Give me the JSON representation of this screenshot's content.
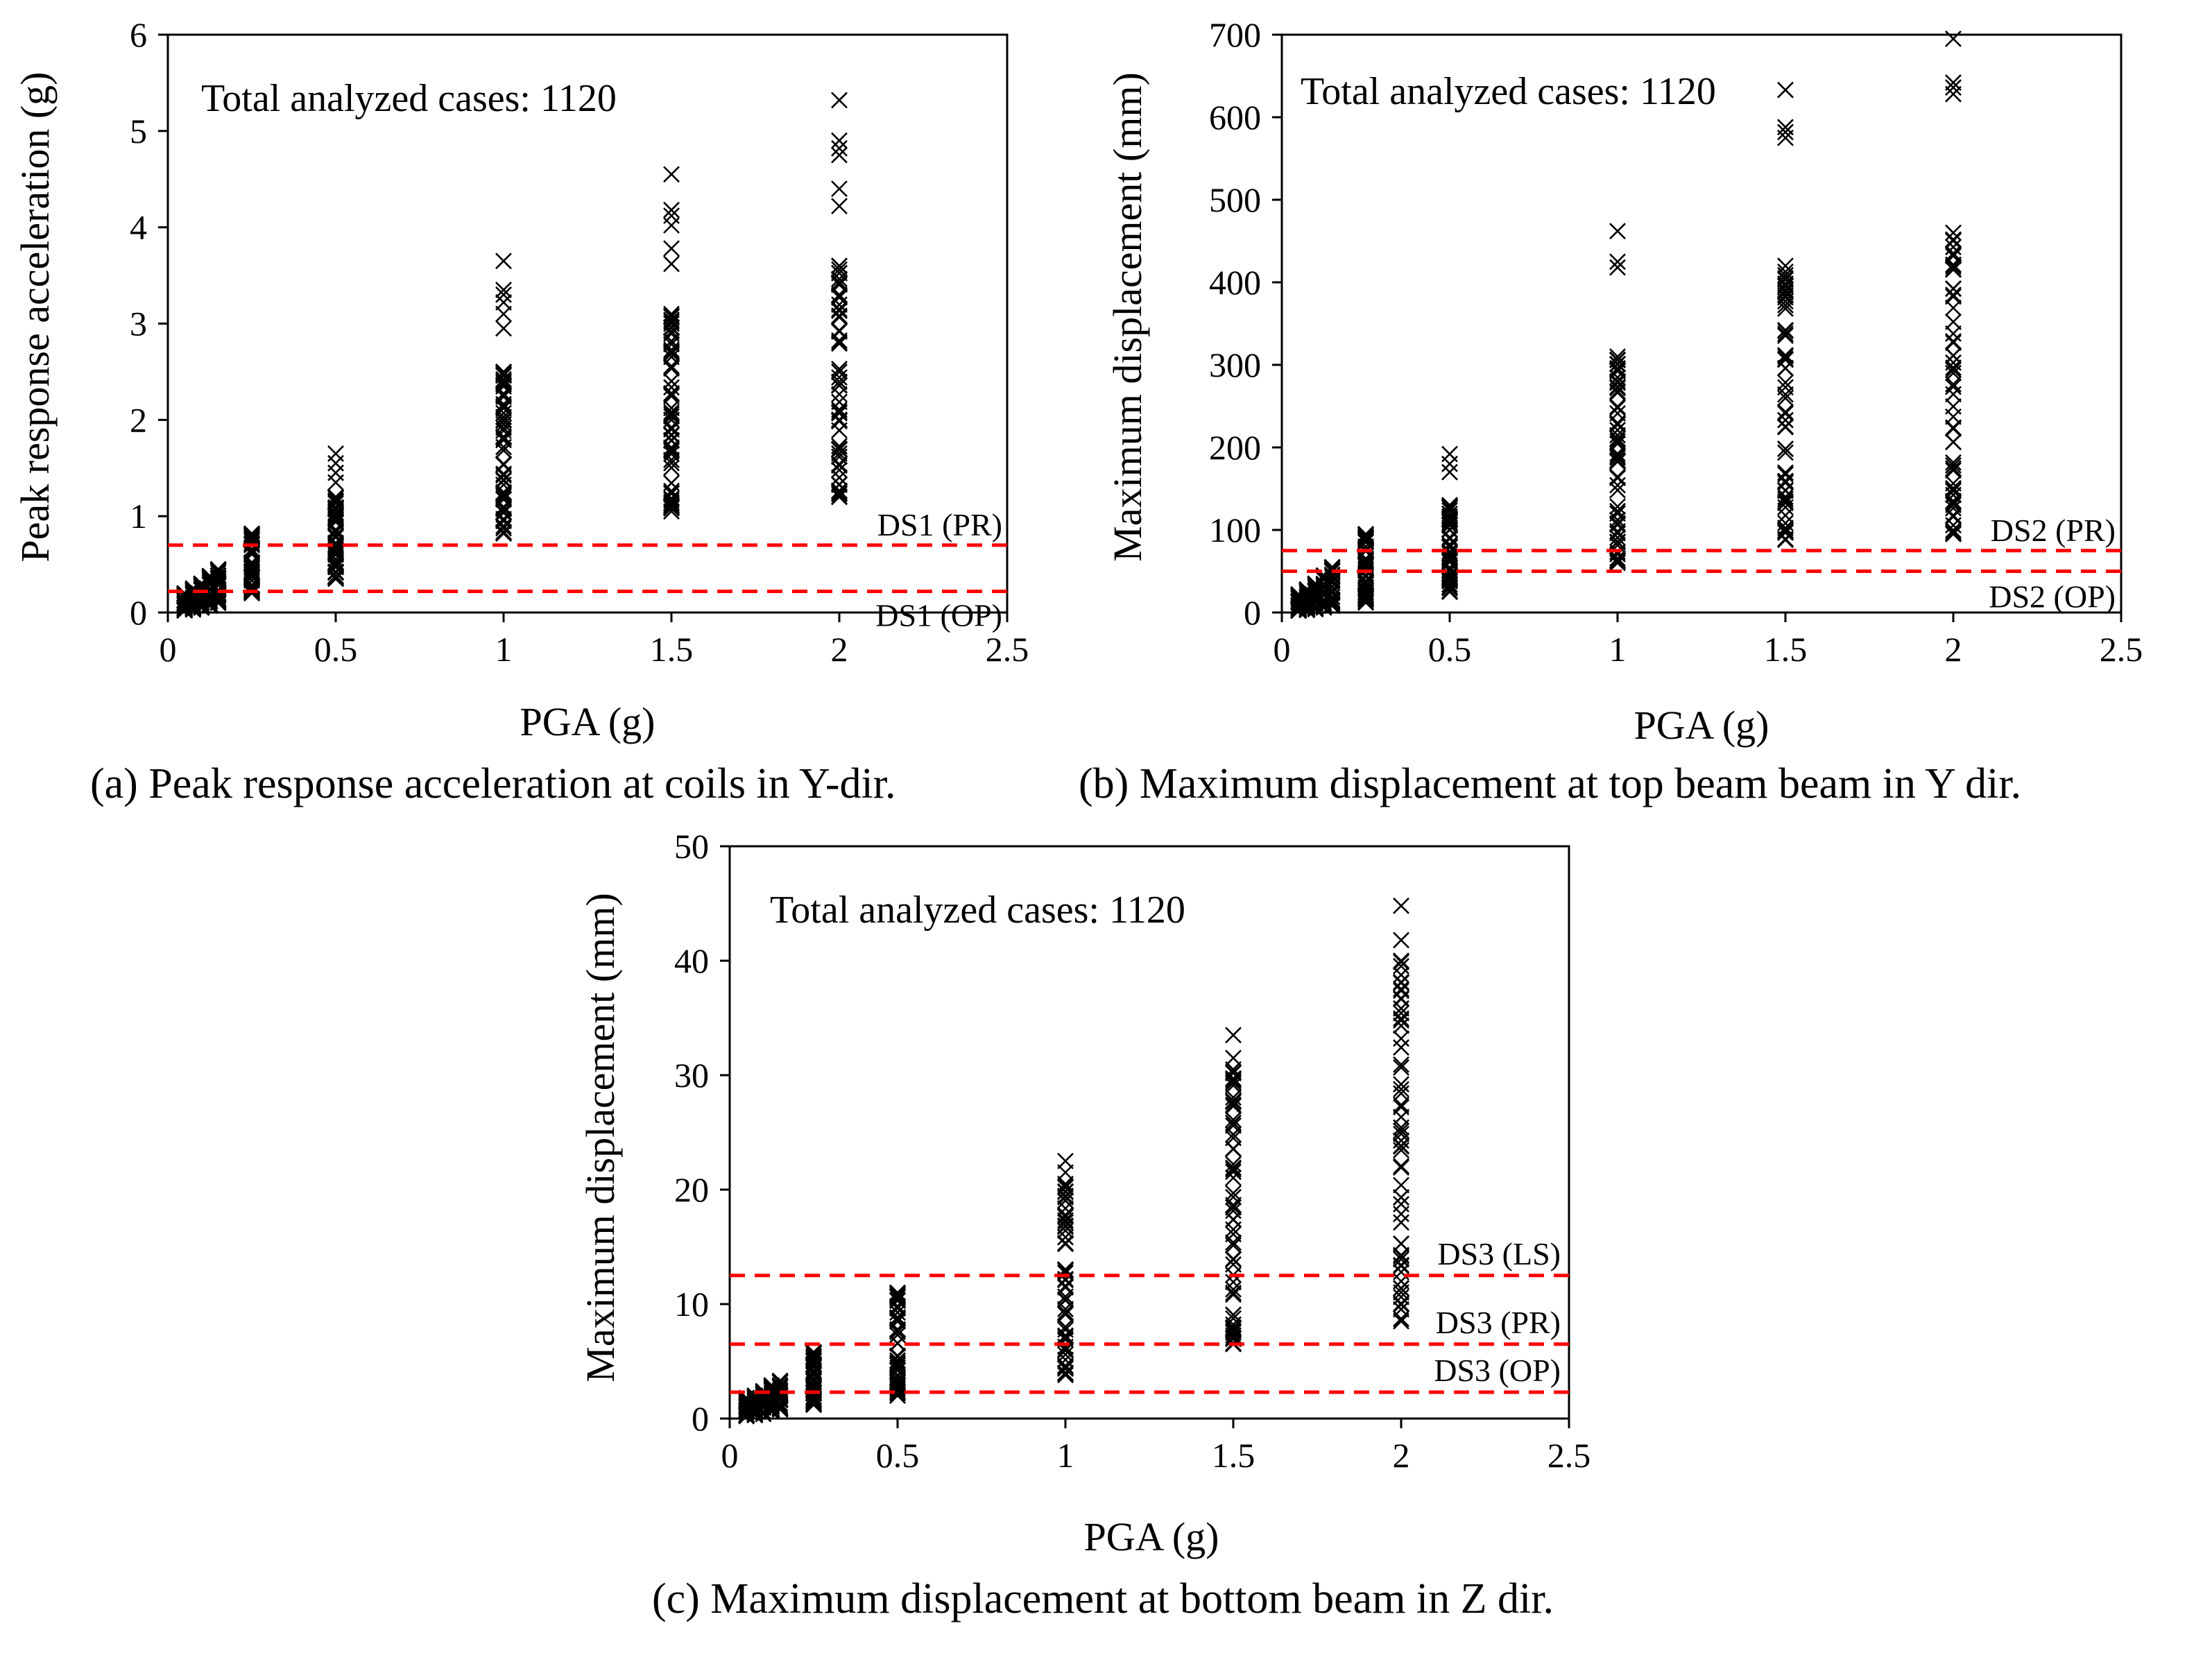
{
  "chart_data": [
    {
      "id": "a",
      "type": "scatter",
      "caption": "(a) Peak response acceleration at coils in Y-dir.",
      "annotation": "Total analyzed cases: 1120",
      "xlabel": "PGA (g)",
      "ylabel": "Peak response acceleration (g)",
      "xlim": [
        0,
        2.5
      ],
      "ylim": [
        0,
        6
      ],
      "xticks": [
        0,
        0.5,
        1,
        1.5,
        2,
        2.5
      ],
      "xtick_labels": [
        "0",
        "0.5",
        "1",
        "1.5",
        "2",
        "2.5"
      ],
      "yticks": [
        0,
        1,
        2,
        3,
        4,
        5,
        6
      ],
      "ytick_labels": [
        "0",
        "1",
        "2",
        "3",
        "4",
        "5",
        "6"
      ],
      "marker": "x",
      "marker_color": "#000000",
      "thresholds": [
        {
          "label": "DS1 (PR)",
          "value": 0.7,
          "color": "#ff0000"
        },
        {
          "label": "DS1 (OP)",
          "value": 0.22,
          "color": "#ff0000"
        }
      ],
      "groups": [
        {
          "pga": 0.05,
          "min": 0.02,
          "max": 0.2
        },
        {
          "pga": 0.075,
          "min": 0.03,
          "max": 0.25
        },
        {
          "pga": 0.1,
          "min": 0.05,
          "max": 0.3
        },
        {
          "pga": 0.125,
          "min": 0.07,
          "max": 0.38
        },
        {
          "pga": 0.15,
          "min": 0.1,
          "max": 0.45
        },
        {
          "pga": 0.25,
          "min": 0.2,
          "max": 0.82
        },
        {
          "pga": 0.5,
          "min": 0.35,
          "max": 1.2
        },
        {
          "pga": 1.0,
          "min": 0.82,
          "max": 2.5
        },
        {
          "pga": 1.5,
          "min": 1.05,
          "max": 3.1
        },
        {
          "pga": 2.0,
          "min": 1.2,
          "max": 3.6
        }
      ],
      "outliers": [
        {
          "x": 0.5,
          "y": 1.35
        },
        {
          "x": 0.5,
          "y": 1.45
        },
        {
          "x": 0.5,
          "y": 1.55
        },
        {
          "x": 0.5,
          "y": 1.65
        },
        {
          "x": 1.0,
          "y": 2.95
        },
        {
          "x": 1.0,
          "y": 3.1
        },
        {
          "x": 1.0,
          "y": 3.22
        },
        {
          "x": 1.0,
          "y": 3.3
        },
        {
          "x": 1.0,
          "y": 3.35
        },
        {
          "x": 1.0,
          "y": 3.65
        },
        {
          "x": 1.5,
          "y": 3.62
        },
        {
          "x": 1.5,
          "y": 3.78
        },
        {
          "x": 1.5,
          "y": 4.02
        },
        {
          "x": 1.5,
          "y": 4.12
        },
        {
          "x": 1.5,
          "y": 4.18
        },
        {
          "x": 1.5,
          "y": 4.55
        },
        {
          "x": 2.0,
          "y": 4.22
        },
        {
          "x": 2.0,
          "y": 4.4
        },
        {
          "x": 2.0,
          "y": 4.75
        },
        {
          "x": 2.0,
          "y": 4.82
        },
        {
          "x": 2.0,
          "y": 4.9
        },
        {
          "x": 2.0,
          "y": 5.32
        }
      ]
    },
    {
      "id": "b",
      "type": "scatter",
      "caption": "(b) Maximum displacement at top beam beam in Y dir.",
      "annotation": "Total analyzed cases: 1120",
      "xlabel": "PGA (g)",
      "ylabel": "Maximum displacement (mm)",
      "xlim": [
        0,
        2.5
      ],
      "ylim": [
        0,
        700
      ],
      "xticks": [
        0,
        0.5,
        1,
        1.5,
        2,
        2.5
      ],
      "xtick_labels": [
        "0",
        "0.5",
        "1",
        "1.5",
        "2",
        "2.5"
      ],
      "yticks": [
        0,
        100,
        200,
        300,
        400,
        500,
        600,
        700
      ],
      "ytick_labels": [
        "0",
        "100",
        "200",
        "300",
        "400",
        "500",
        "600",
        "700"
      ],
      "marker": "x",
      "marker_color": "#000000",
      "thresholds": [
        {
          "label": "DS2 (PR)",
          "value": 75,
          "color": "#ff0000"
        },
        {
          "label": "DS2 (OP)",
          "value": 50,
          "color": "#ff0000"
        }
      ],
      "groups": [
        {
          "pga": 0.05,
          "min": 2,
          "max": 22
        },
        {
          "pga": 0.075,
          "min": 3,
          "max": 28
        },
        {
          "pga": 0.1,
          "min": 4,
          "max": 35
        },
        {
          "pga": 0.125,
          "min": 6,
          "max": 45
        },
        {
          "pga": 0.15,
          "min": 8,
          "max": 55
        },
        {
          "pga": 0.25,
          "min": 12,
          "max": 95
        },
        {
          "pga": 0.5,
          "min": 25,
          "max": 130
        },
        {
          "pga": 1.0,
          "min": 60,
          "max": 310
        },
        {
          "pga": 1.5,
          "min": 88,
          "max": 420
        },
        {
          "pga": 2.0,
          "min": 95,
          "max": 460
        }
      ],
      "outliers": [
        {
          "x": 0.5,
          "y": 170
        },
        {
          "x": 0.5,
          "y": 180
        },
        {
          "x": 0.5,
          "y": 192
        },
        {
          "x": 1.0,
          "y": 418
        },
        {
          "x": 1.0,
          "y": 425
        },
        {
          "x": 1.0,
          "y": 462
        },
        {
          "x": 1.5,
          "y": 575
        },
        {
          "x": 1.5,
          "y": 582
        },
        {
          "x": 1.5,
          "y": 588
        },
        {
          "x": 1.5,
          "y": 633
        },
        {
          "x": 2.0,
          "y": 628
        },
        {
          "x": 2.0,
          "y": 636
        },
        {
          "x": 2.0,
          "y": 642
        },
        {
          "x": 2.0,
          "y": 695
        }
      ]
    },
    {
      "id": "c",
      "type": "scatter",
      "caption": "(c) Maximum displacement at bottom beam in Z dir.",
      "annotation": "Total analyzed cases: 1120",
      "xlabel": "PGA (g)",
      "ylabel": "Maximum displacement (mm)",
      "xlim": [
        0,
        2.5
      ],
      "ylim": [
        0,
        50
      ],
      "xticks": [
        0,
        0.5,
        1,
        1.5,
        2,
        2.5
      ],
      "xtick_labels": [
        "0",
        "0.5",
        "1",
        "1.5",
        "2",
        "2.5"
      ],
      "yticks": [
        0,
        10,
        20,
        30,
        40,
        50
      ],
      "ytick_labels": [
        "0",
        "10",
        "20",
        "30",
        "40",
        "50"
      ],
      "marker": "x",
      "marker_color": "#000000",
      "thresholds": [
        {
          "label": "DS3 (LS)",
          "value": 12.5,
          "color": "#ff0000"
        },
        {
          "label": "DS3 (PR)",
          "value": 6.5,
          "color": "#ff0000"
        },
        {
          "label": "DS3 (OP)",
          "value": 2.3,
          "color": "#ff0000"
        }
      ],
      "groups": [
        {
          "pga": 0.05,
          "min": 0.2,
          "max": 1.8
        },
        {
          "pga": 0.075,
          "min": 0.3,
          "max": 2.0
        },
        {
          "pga": 0.1,
          "min": 0.4,
          "max": 2.4
        },
        {
          "pga": 0.125,
          "min": 0.6,
          "max": 2.9
        },
        {
          "pga": 0.15,
          "min": 0.8,
          "max": 3.3
        },
        {
          "pga": 0.25,
          "min": 1.2,
          "max": 5.8
        },
        {
          "pga": 0.5,
          "min": 2.0,
          "max": 11.0
        },
        {
          "pga": 1.0,
          "min": 3.8,
          "max": 20.5
        },
        {
          "pga": 1.5,
          "min": 6.5,
          "max": 30.5
        },
        {
          "pga": 2.0,
          "min": 8.5,
          "max": 40.0
        }
      ],
      "outliers": [
        {
          "x": 1.0,
          "y": 21.5
        },
        {
          "x": 1.0,
          "y": 22.5
        },
        {
          "x": 1.5,
          "y": 31.5
        },
        {
          "x": 1.5,
          "y": 33.5
        },
        {
          "x": 2.0,
          "y": 41.8
        },
        {
          "x": 2.0,
          "y": 44.8
        }
      ]
    }
  ]
}
